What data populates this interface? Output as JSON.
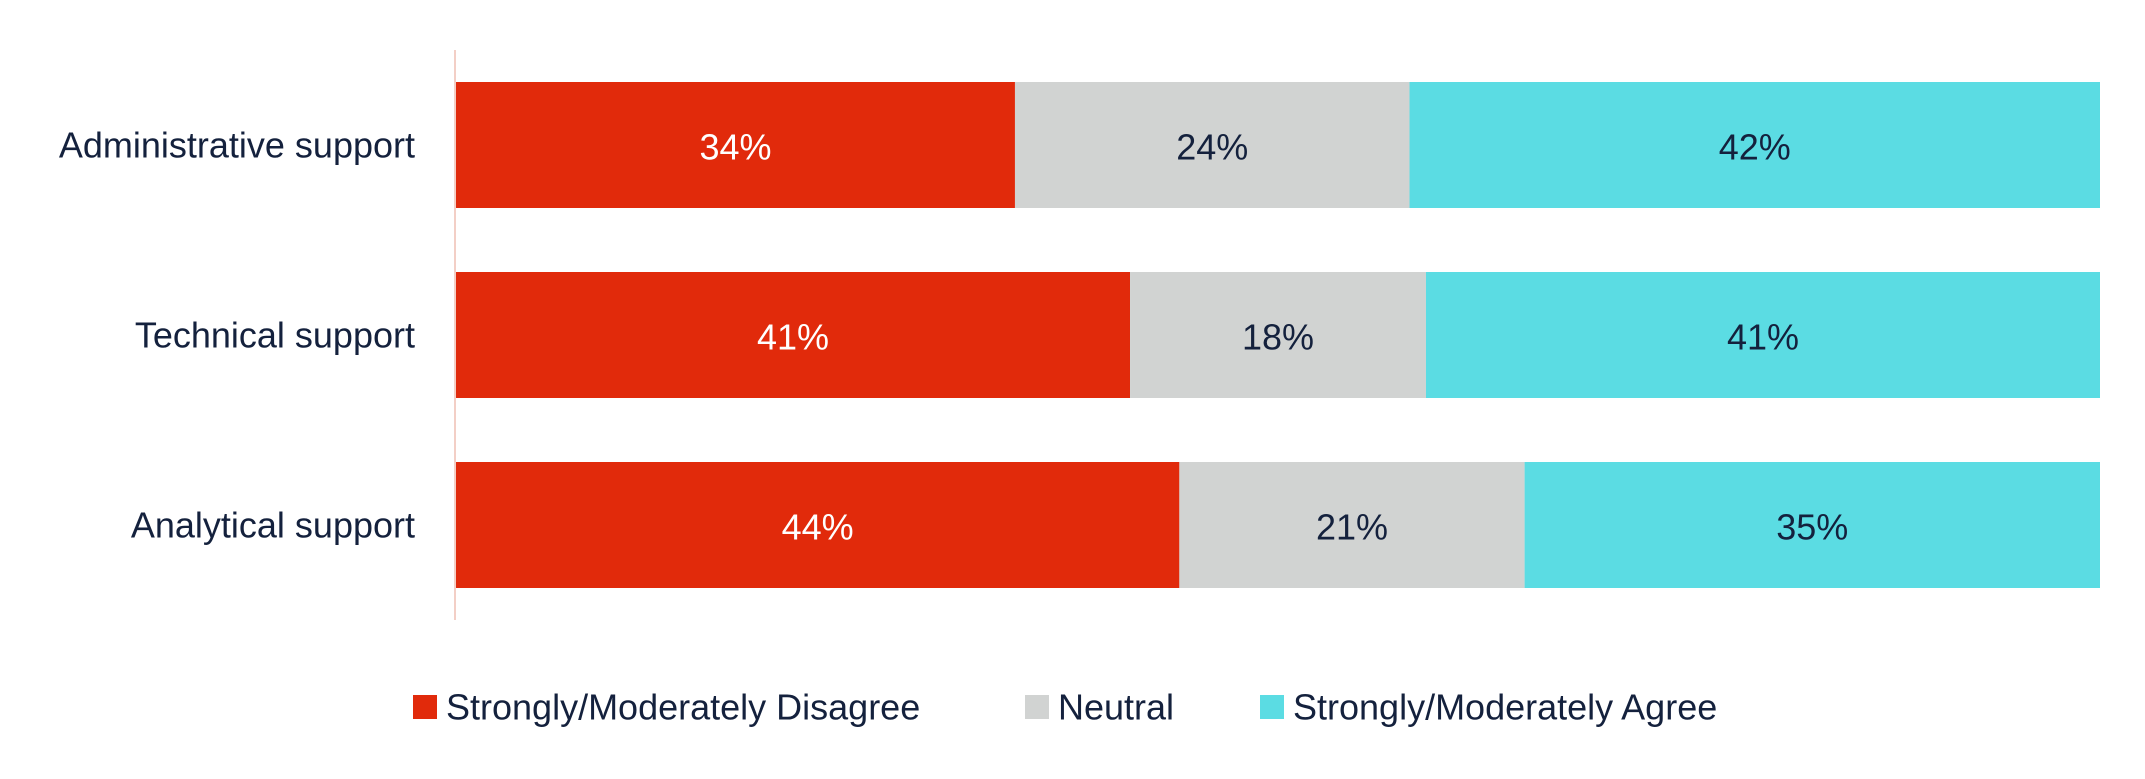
{
  "chart_data": {
    "type": "bar",
    "orientation": "horizontal",
    "stacked": true,
    "percent_stacked": true,
    "categories": [
      "Administrative support",
      "Technical support",
      "Analytical support"
    ],
    "series": [
      {
        "name": "Strongly/Moderately Disagree",
        "values": [
          34,
          41,
          44
        ],
        "labels": [
          "34%",
          "41%",
          "44%"
        ],
        "color": "#e12a0b",
        "label_color": "#ffffff"
      },
      {
        "name": "Neutral",
        "values": [
          24,
          18,
          21
        ],
        "labels": [
          "24%",
          "18%",
          "21%"
        ],
        "color": "#d1d3d2",
        "label_color": "#14213d"
      },
      {
        "name": "Strongly/Moderately Agree",
        "values": [
          42,
          41,
          35
        ],
        "labels": [
          "42%",
          "41%",
          "35%"
        ],
        "color": "#5bdce3",
        "label_color": "#14213d"
      }
    ],
    "xlim": [
      0,
      100
    ],
    "grid": false,
    "legend_position": "bottom",
    "title": "",
    "xlabel": "",
    "ylabel": ""
  }
}
